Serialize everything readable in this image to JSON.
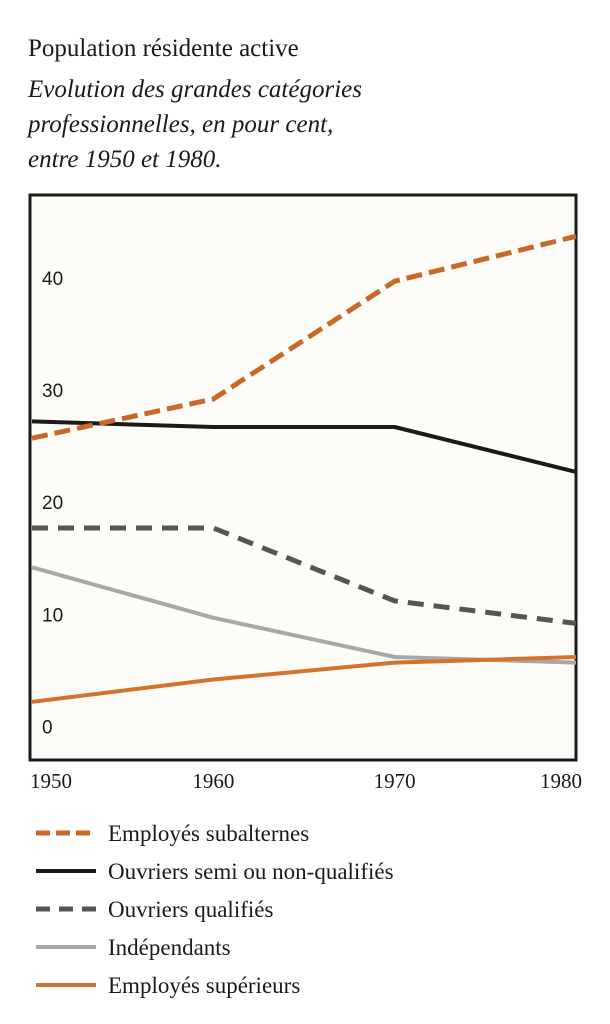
{
  "chart_data": {
    "type": "line",
    "title": "Population résidente active",
    "subtitle_lines": [
      "Evolution des grandes catégories",
      "professionnelles, en pour cent,",
      "entre 1950 et 1980."
    ],
    "x": [
      1950,
      1960,
      1970,
      1980
    ],
    "x_tick_labels": [
      "1950",
      "1960",
      "1970",
      "1980"
    ],
    "y_tick_labels": [
      "0",
      "10",
      "20",
      "30",
      "40"
    ],
    "xlim": [
      1950,
      1980
    ],
    "ylim": [
      -2,
      48
    ],
    "grid": false,
    "legend_position": "bottom",
    "series": [
      {
        "name": "Employés subalternes",
        "values": [
          26.5,
          30.0,
          40.5,
          44.5
        ],
        "color": "#c8692a",
        "style": "dashed-thick"
      },
      {
        "name": "Ouvriers semi ou non-qualifiés",
        "values": [
          28.0,
          27.5,
          27.5,
          23.5
        ],
        "color": "#1a1a1a",
        "style": "solid"
      },
      {
        "name": "Ouvriers qualifiés",
        "values": [
          18.5,
          18.5,
          12.0,
          10.0
        ],
        "color": "#555555",
        "style": "dashed"
      },
      {
        "name": "Indépendants",
        "values": [
          15.0,
          10.5,
          7.0,
          6.5
        ],
        "color": "#a8a8a8",
        "style": "solid"
      },
      {
        "name": "Employés supérieurs",
        "values": [
          3.0,
          5.0,
          6.5,
          7.0
        ],
        "color": "#d4732e",
        "style": "solid"
      }
    ]
  }
}
